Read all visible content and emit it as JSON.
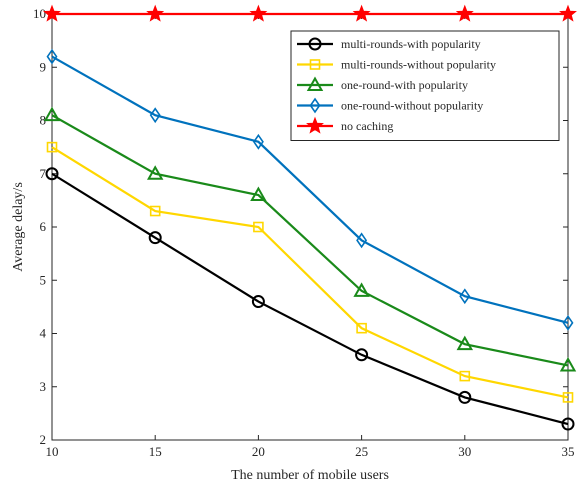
{
  "chart_data": {
    "type": "line",
    "title": "",
    "xlabel": "The number of mobile users",
    "ylabel": "Average delay/s",
    "x": [
      10,
      15,
      20,
      25,
      30,
      35
    ],
    "xlim": [
      10,
      35
    ],
    "ylim": [
      2,
      10
    ],
    "xticks": [
      "10",
      "15",
      "20",
      "25",
      "30",
      "35"
    ],
    "yticks": [
      "2",
      "3",
      "4",
      "5",
      "6",
      "7",
      "8",
      "9",
      "10"
    ],
    "grid": false,
    "legend_position": "top-right",
    "series": [
      {
        "name": "multi-rounds-with popularity",
        "values": [
          7.0,
          5.8,
          4.6,
          3.6,
          2.8,
          2.3
        ],
        "color": "#000000",
        "marker": "circle"
      },
      {
        "name": "multi-rounds-without popularity",
        "values": [
          7.5,
          6.3,
          6.0,
          4.1,
          3.2,
          2.8
        ],
        "color": "#FFD700",
        "marker": "square"
      },
      {
        "name": "one-round-with popularity",
        "values": [
          8.1,
          7.0,
          6.6,
          4.8,
          3.8,
          3.4
        ],
        "color": "#1A8A1A",
        "marker": "triangle"
      },
      {
        "name": "one-round-without popularity",
        "values": [
          9.2,
          8.1,
          7.6,
          5.75,
          4.7,
          4.2
        ],
        "color": "#0072BD",
        "marker": "diamond"
      },
      {
        "name": "no caching",
        "values": [
          10,
          10,
          10,
          10,
          10,
          10
        ],
        "color": "#FF0000",
        "marker": "star"
      }
    ]
  }
}
